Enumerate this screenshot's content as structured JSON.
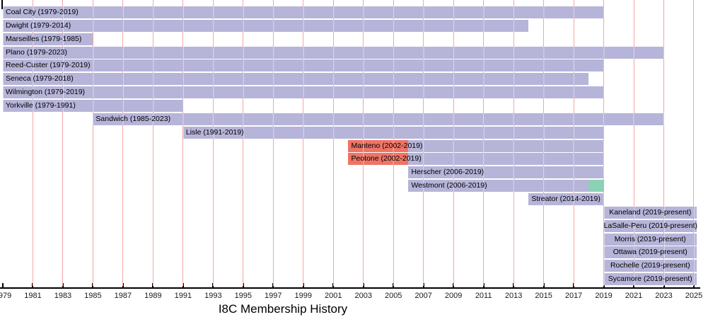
{
  "chart_data": {
    "type": "bar",
    "subtype": "horizontal-gantt-timeline",
    "title": "I8C Membership History",
    "x_axis": {
      "min": 1979,
      "max": 2025,
      "tick_interval": 2,
      "ticks": [
        1979,
        1981,
        1983,
        1985,
        1987,
        1989,
        1991,
        1993,
        1995,
        1997,
        1999,
        2001,
        2003,
        2005,
        2007,
        2009,
        2011,
        2013,
        2015,
        2017,
        2019,
        2021,
        2023,
        2025
      ],
      "gridline_years": [
        1981,
        1983,
        1985,
        1987,
        1989,
        1991,
        1993,
        1995,
        1997,
        1999,
        2001,
        2003,
        2005,
        2007,
        2009,
        2011,
        2013,
        2015,
        2017,
        2019,
        2021,
        2023,
        2025
      ]
    },
    "grid": true,
    "legend": false,
    "rows": [
      {
        "label": "Coal City (1979-2019)",
        "align": "left",
        "segments": [
          {
            "start": 1979,
            "end": 2019,
            "color": "bar_member"
          }
        ]
      },
      {
        "label": "Dwight (1979-2014)",
        "align": "left",
        "segments": [
          {
            "start": 1979,
            "end": 2014,
            "color": "bar_member"
          }
        ]
      },
      {
        "label": "Marseilles (1979-1985)",
        "align": "left",
        "segments": [
          {
            "start": 1979,
            "end": 1985,
            "color": "bar_member"
          }
        ]
      },
      {
        "label": "Plano (1979-2023)",
        "align": "left",
        "segments": [
          {
            "start": 1979,
            "end": 2023,
            "color": "bar_member"
          }
        ]
      },
      {
        "label": "Reed-Custer (1979-2019)",
        "align": "left",
        "segments": [
          {
            "start": 1979,
            "end": 2019,
            "color": "bar_member"
          }
        ]
      },
      {
        "label": "Seneca (1979-2018)",
        "align": "left",
        "segments": [
          {
            "start": 1979,
            "end": 2018,
            "color": "bar_member"
          }
        ]
      },
      {
        "label": "Wilmington (1979-2019)",
        "align": "left",
        "segments": [
          {
            "start": 1979,
            "end": 2019,
            "color": "bar_member"
          }
        ]
      },
      {
        "label": "Yorkville (1979-1991)",
        "align": "left",
        "segments": [
          {
            "start": 1979,
            "end": 1991,
            "color": "bar_member"
          }
        ]
      },
      {
        "label": "Sandwich (1985-2023)",
        "align": "left",
        "segments": [
          {
            "start": 1985,
            "end": 2023,
            "color": "bar_member"
          }
        ]
      },
      {
        "label": "Lisle (1991-2019)",
        "align": "left",
        "segments": [
          {
            "start": 1991,
            "end": 2019,
            "color": "bar_member"
          }
        ]
      },
      {
        "label": "Manteno (2002-2019)",
        "align": "left",
        "segments": [
          {
            "start": 2002,
            "end": 2006,
            "color": "bar_red"
          },
          {
            "start": 2006,
            "end": 2019,
            "color": "bar_member"
          }
        ]
      },
      {
        "label": "Peotone (2002-2019)",
        "align": "left",
        "segments": [
          {
            "start": 2002,
            "end": 2006,
            "color": "bar_red"
          },
          {
            "start": 2006,
            "end": 2019,
            "color": "bar_member"
          }
        ]
      },
      {
        "label": "Herscher (2006-2019)",
        "align": "left",
        "segments": [
          {
            "start": 2006,
            "end": 2019,
            "color": "bar_member"
          }
        ]
      },
      {
        "label": "Westmont (2006-2019)",
        "align": "left",
        "segments": [
          {
            "start": 2006,
            "end": 2018,
            "color": "bar_member"
          },
          {
            "start": 2018,
            "end": 2019,
            "color": "bar_teal"
          }
        ]
      },
      {
        "label": "Streator (2014-2019)",
        "align": "left",
        "segments": [
          {
            "start": 2014,
            "end": 2019,
            "color": "bar_member"
          }
        ]
      },
      {
        "label": "Kaneland (2019-present)",
        "align": "center",
        "segments": [
          {
            "start": 2019,
            "end": "present",
            "color": "bar_member"
          }
        ]
      },
      {
        "label": "LaSalle-Peru (2019-present)",
        "align": "center",
        "segments": [
          {
            "start": 2019,
            "end": "present",
            "color": "bar_member"
          }
        ]
      },
      {
        "label": "Morris (2019-present)",
        "align": "center",
        "segments": [
          {
            "start": 2019,
            "end": "present",
            "color": "bar_member"
          }
        ]
      },
      {
        "label": "Ottawa (2019-present)",
        "align": "center",
        "segments": [
          {
            "start": 2019,
            "end": "present",
            "color": "bar_member"
          }
        ]
      },
      {
        "label": "Rochelle (2019-present)",
        "align": "center",
        "segments": [
          {
            "start": 2019,
            "end": "present",
            "color": "bar_member"
          }
        ]
      },
      {
        "label": "Sycamore (2019-present)",
        "align": "center",
        "segments": [
          {
            "start": 2019,
            "end": "present",
            "color": "bar_member"
          }
        ]
      }
    ]
  },
  "colors": {
    "bar_member": "#b6b4d8",
    "bar_red": "#ee7465",
    "bar_teal": "#8bd2b4",
    "gridline": "#f5a5a5",
    "grid_over_bar": "rgba(255,255,255,0.5)",
    "axis": "#000000",
    "text": "#000000",
    "background": "#ffffff"
  }
}
